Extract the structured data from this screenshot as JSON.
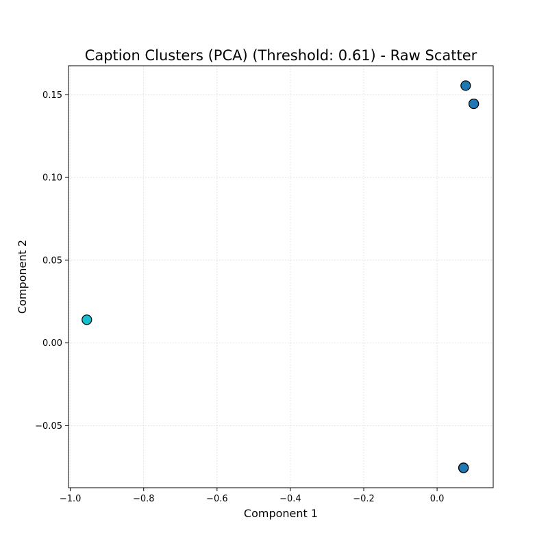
{
  "chart_data": {
    "type": "scatter",
    "title": "Caption Clusters (PCA) (Threshold: 0.61) - Raw Scatter",
    "xlabel": "Component 1",
    "ylabel": "Component 2",
    "xlim": [
      -1.005,
      0.153
    ],
    "ylim": [
      -0.0875,
      0.1675
    ],
    "x_ticks": [
      -1.0,
      -0.8,
      -0.6,
      -0.4,
      -0.2,
      0.0
    ],
    "x_tick_labels": [
      "−1.0",
      "−0.8",
      "−0.6",
      "−0.4",
      "−0.2",
      "0.0"
    ],
    "y_ticks": [
      -0.05,
      0.0,
      0.05,
      0.1,
      0.15
    ],
    "y_tick_labels": [
      "−0.05",
      "0.00",
      "0.05",
      "0.10",
      "0.15"
    ],
    "grid": true,
    "points": [
      {
        "x": 0.078,
        "y": 0.1555,
        "color": "#1f77b4"
      },
      {
        "x": 0.1,
        "y": 0.1445,
        "color": "#1f77b4"
      },
      {
        "x": 0.1,
        "y": 0.1445,
        "color": "#1f77b4"
      },
      {
        "x": -0.955,
        "y": 0.014,
        "color": "#17becf"
      },
      {
        "x": 0.072,
        "y": -0.0755,
        "color": "#1f77b4"
      },
      {
        "x": 0.072,
        "y": -0.0755,
        "color": "#1f77b4"
      },
      {
        "x": 0.072,
        "y": -0.0755,
        "color": "#1f77b4"
      }
    ]
  }
}
